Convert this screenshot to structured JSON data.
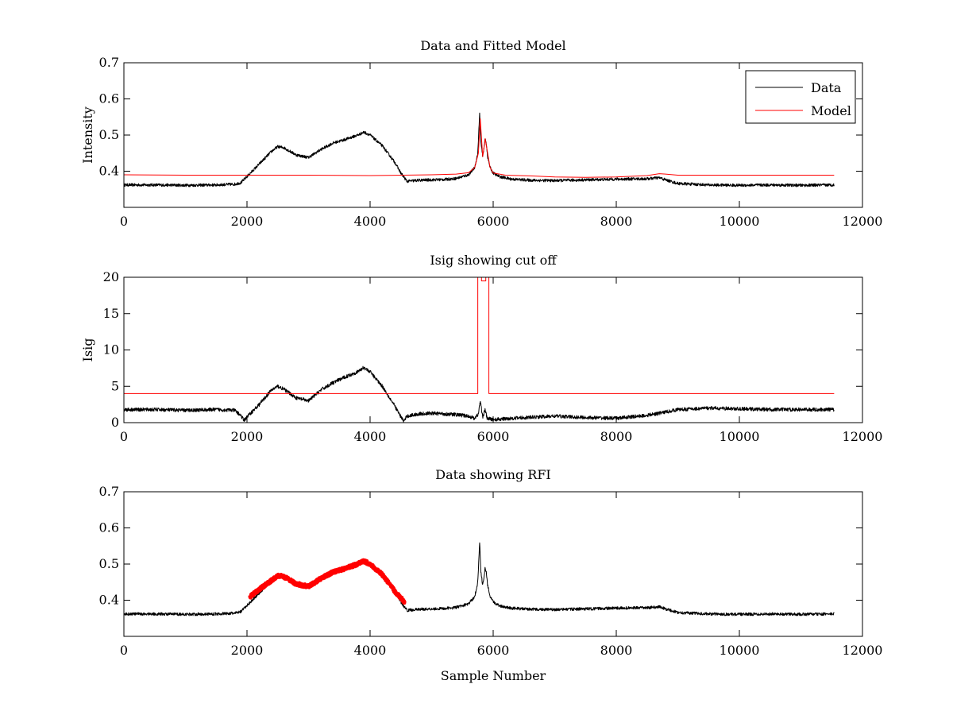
{
  "figure": {
    "background": "#ffffff"
  },
  "colors": {
    "data": "#000000",
    "model": "#ff0000",
    "rfi": "#ff0000",
    "axes": "#000000"
  },
  "chart_data": [
    {
      "type": "line",
      "title": "Data and Fitted Model",
      "xlabel": "",
      "ylabel": "Intensity",
      "xlim": [
        0,
        12000
      ],
      "ylim": [
        0.3,
        0.7
      ],
      "xticks": [
        0,
        2000,
        4000,
        6000,
        8000,
        10000,
        12000
      ],
      "yticks": [
        0.4,
        0.5,
        0.6,
        0.7
      ],
      "grid": false,
      "legend": {
        "position": "top-right",
        "entries": [
          "Data",
          "Model"
        ]
      },
      "series": [
        {
          "name": "Data",
          "color": "#000000",
          "noise": 0.004,
          "x": [
            0,
            500,
            1000,
            1500,
            1800,
            1900,
            2000,
            2200,
            2400,
            2500,
            2600,
            2800,
            3000,
            3200,
            3400,
            3600,
            3800,
            3900,
            4000,
            4200,
            4400,
            4500,
            4600,
            4800,
            5000,
            5200,
            5400,
            5600,
            5700,
            5750,
            5780,
            5800,
            5830,
            5870,
            5890,
            5910,
            5950,
            6000,
            6100,
            6300,
            6600,
            7000,
            7500,
            8000,
            8500,
            8700,
            8800,
            9000,
            9500,
            10000,
            10500,
            11000,
            11540
          ],
          "y": [
            0.362,
            0.362,
            0.361,
            0.362,
            0.364,
            0.368,
            0.385,
            0.42,
            0.455,
            0.468,
            0.465,
            0.445,
            0.438,
            0.46,
            0.478,
            0.488,
            0.5,
            0.508,
            0.5,
            0.47,
            0.425,
            0.395,
            0.372,
            0.375,
            0.376,
            0.377,
            0.38,
            0.39,
            0.41,
            0.45,
            0.56,
            0.48,
            0.44,
            0.49,
            0.475,
            0.44,
            0.41,
            0.395,
            0.385,
            0.378,
            0.375,
            0.374,
            0.376,
            0.378,
            0.379,
            0.382,
            0.376,
            0.366,
            0.362,
            0.361,
            0.362,
            0.361,
            0.362
          ]
        },
        {
          "name": "Model",
          "color": "#ff0000",
          "noise": 0,
          "x": [
            0,
            1000,
            2000,
            3000,
            4000,
            5000,
            5400,
            5600,
            5700,
            5760,
            5790,
            5830,
            5870,
            5900,
            5950,
            6000,
            6200,
            6600,
            7000,
            7500,
            8000,
            8500,
            8700,
            8800,
            9000,
            9500,
            10000,
            11000,
            11540
          ],
          "y": [
            0.39,
            0.389,
            0.389,
            0.389,
            0.388,
            0.39,
            0.392,
            0.396,
            0.41,
            0.45,
            0.545,
            0.44,
            0.49,
            0.46,
            0.41,
            0.395,
            0.389,
            0.387,
            0.384,
            0.383,
            0.384,
            0.388,
            0.393,
            0.392,
            0.389,
            0.389,
            0.389,
            0.389,
            0.389
          ]
        }
      ]
    },
    {
      "type": "line",
      "title": "Isig showing cut off",
      "xlabel": "",
      "ylabel": "Isig",
      "xlim": [
        0,
        12000
      ],
      "ylim": [
        0,
        20
      ],
      "xticks": [
        0,
        2000,
        4000,
        6000,
        8000,
        10000,
        12000
      ],
      "yticks": [
        0,
        5,
        10,
        15,
        20
      ],
      "grid": false,
      "series": [
        {
          "name": "",
          "color": "#000000",
          "noise": 0.25,
          "x": [
            0,
            500,
            1000,
            1500,
            1800,
            1900,
            1950,
            2000,
            2200,
            2400,
            2500,
            2600,
            2800,
            3000,
            3200,
            3400,
            3600,
            3800,
            3900,
            4000,
            4200,
            4400,
            4500,
            4550,
            4600,
            4800,
            5000,
            5200,
            5400,
            5600,
            5700,
            5760,
            5790,
            5830,
            5870,
            5900,
            6000,
            6300,
            7000,
            7500,
            8000,
            8500,
            8700,
            9000,
            9500,
            10000,
            10500,
            11000,
            11540
          ],
          "y": [
            1.8,
            1.8,
            1.7,
            1.8,
            1.7,
            1.0,
            0.3,
            0.8,
            2.5,
            4.5,
            5.0,
            4.6,
            3.4,
            3.0,
            4.5,
            5.5,
            6.3,
            7.0,
            7.6,
            7.0,
            5.0,
            2.3,
            0.8,
            0.2,
            0.9,
            1.2,
            1.3,
            1.2,
            1.1,
            0.9,
            0.6,
            1.2,
            3.0,
            0.8,
            1.8,
            0.6,
            0.4,
            0.6,
            0.9,
            0.7,
            0.6,
            1.0,
            1.3,
            1.8,
            2.0,
            1.9,
            1.8,
            1.8,
            1.8
          ]
        },
        {
          "name": "",
          "color": "#ff0000",
          "noise": 0,
          "x": [
            0,
            5750,
            5750,
            5810,
            5810,
            5880,
            5880,
            5930,
            5930,
            11540
          ],
          "y": [
            4,
            4,
            20,
            20,
            19.5,
            19.5,
            20,
            20,
            4,
            4
          ]
        }
      ]
    },
    {
      "type": "line",
      "title": "Data showing RFI",
      "xlabel": "Sample Number",
      "ylabel": "",
      "xlim": [
        0,
        12000
      ],
      "ylim": [
        0.3,
        0.7
      ],
      "xticks": [
        0,
        2000,
        4000,
        6000,
        8000,
        10000,
        12000
      ],
      "yticks": [
        0.4,
        0.5,
        0.6,
        0.7
      ],
      "grid": false,
      "series": [
        {
          "name": "",
          "color": "#000000",
          "noise": 0.004,
          "x": [
            0,
            500,
            1000,
            1500,
            1800,
            1900,
            2000,
            2200,
            2400,
            2500,
            2600,
            2800,
            3000,
            3200,
            3400,
            3600,
            3800,
            3900,
            4000,
            4200,
            4400,
            4500,
            4600,
            4800,
            5000,
            5200,
            5400,
            5600,
            5700,
            5750,
            5780,
            5800,
            5830,
            5870,
            5890,
            5910,
            5950,
            6000,
            6100,
            6300,
            6600,
            7000,
            7500,
            8000,
            8500,
            8700,
            8800,
            9000,
            9500,
            10000,
            10500,
            11000,
            11540
          ],
          "y": [
            0.362,
            0.362,
            0.361,
            0.362,
            0.364,
            0.368,
            0.385,
            0.42,
            0.455,
            0.468,
            0.465,
            0.445,
            0.438,
            0.46,
            0.478,
            0.488,
            0.5,
            0.508,
            0.5,
            0.47,
            0.425,
            0.395,
            0.372,
            0.375,
            0.376,
            0.377,
            0.38,
            0.39,
            0.41,
            0.45,
            0.56,
            0.48,
            0.44,
            0.49,
            0.475,
            0.44,
            0.41,
            0.395,
            0.385,
            0.378,
            0.375,
            0.374,
            0.376,
            0.378,
            0.379,
            0.382,
            0.376,
            0.366,
            0.362,
            0.361,
            0.362,
            0.361,
            0.362
          ]
        },
        {
          "name": "",
          "color": "#ff0000",
          "noise": 0.004,
          "thick": true,
          "x": [
            2050,
            2200,
            2400,
            2500,
            2600,
            2800,
            3000,
            3200,
            3400,
            3600,
            3800,
            3900,
            4000,
            4200,
            4400,
            4560
          ],
          "y": [
            0.41,
            0.43,
            0.455,
            0.468,
            0.465,
            0.445,
            0.438,
            0.46,
            0.478,
            0.488,
            0.5,
            0.508,
            0.5,
            0.47,
            0.425,
            0.395
          ]
        }
      ]
    }
  ]
}
